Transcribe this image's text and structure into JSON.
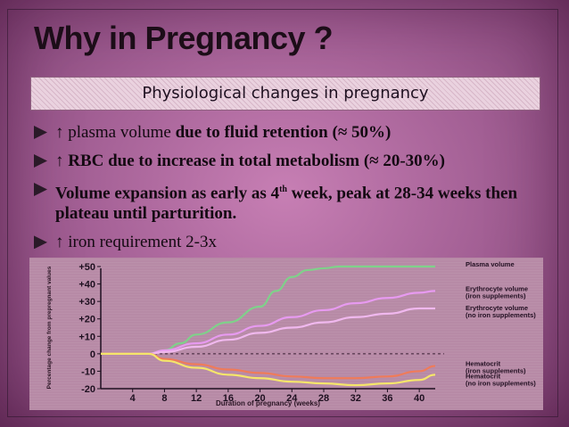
{
  "slide": {
    "title": "Why in Pregnancy ?",
    "subtitle": "Physiological changes in pregnancy",
    "bullets": [
      {
        "text_normal": "↑ plasma volume ",
        "text_bold": "due to fluid retention (≈ 50%)"
      },
      {
        "text_bold": "↑ RBC due to increase in total metabolism (≈ 20-30%)"
      },
      {
        "text_bold_a": "Volume expansion as early as 4",
        "sup": "th",
        "text_bold_b": " week, peak at 28-34 weeks then plateau until parturition."
      },
      {
        "text_normal": "↑ iron requirement 2-3x"
      }
    ]
  },
  "colors": {
    "background": "#a05d92",
    "chart_bg": "#b78aa6",
    "plasma": "#7fd18a",
    "ery_iron": "#e79af0",
    "ery_noiron": "#f0b8ee",
    "hct_iron": "#ef7b5a",
    "hct_noiron": "#f5e66a"
  },
  "chart_data": {
    "type": "line",
    "xlabel": "Duration of pregnancy (weeks)",
    "ylabel": "Percentage change from prepregnant values",
    "x_ticks": [
      "4",
      "8",
      "12",
      "16",
      "20",
      "24",
      "28",
      "32",
      "36",
      "40"
    ],
    "y_ticks": [
      "+50",
      "+40",
      "+30",
      "+20",
      "+10",
      "0",
      "-10",
      "-20"
    ],
    "xlim": [
      0,
      42
    ],
    "ylim": [
      -20,
      50
    ],
    "series": [
      {
        "name": "Plasma volume",
        "x": [
          0,
          6,
          8,
          10,
          12,
          16,
          20,
          22,
          24,
          26,
          28,
          30,
          32,
          36,
          40,
          42
        ],
        "y": [
          0,
          0,
          2,
          6,
          11,
          18,
          27,
          36,
          44,
          48,
          49,
          50,
          50,
          50,
          50,
          50
        ]
      },
      {
        "name": "Erythrocyte volume (iron supplements)",
        "x": [
          0,
          6,
          8,
          12,
          16,
          20,
          24,
          28,
          32,
          36,
          40,
          42
        ],
        "y": [
          0,
          0,
          2,
          6,
          11,
          16,
          21,
          25,
          29,
          32,
          35,
          36
        ]
      },
      {
        "name": "Erythrocyte volume (no iron supplements)",
        "x": [
          0,
          6,
          8,
          12,
          16,
          20,
          24,
          28,
          32,
          36,
          40,
          42
        ],
        "y": [
          0,
          0,
          1,
          4,
          8,
          12,
          15,
          18,
          21,
          23,
          26,
          26
        ]
      },
      {
        "name": "Hematocrit (iron supplements)",
        "x": [
          0,
          6,
          8,
          12,
          16,
          20,
          24,
          28,
          32,
          36,
          40,
          42
        ],
        "y": [
          0,
          0,
          -3,
          -6,
          -9,
          -11,
          -13,
          -14,
          -14,
          -13,
          -10,
          -7
        ]
      },
      {
        "name": "Hematocrit (no iron supplements)",
        "x": [
          0,
          6,
          8,
          12,
          16,
          20,
          24,
          28,
          32,
          36,
          40,
          42
        ],
        "y": [
          0,
          0,
          -4,
          -8,
          -12,
          -14,
          -16,
          -17,
          -18,
          -17,
          -15,
          -12
        ]
      }
    ],
    "legend_labels": [
      {
        "line1": "Plasma volume",
        "line2": ""
      },
      {
        "line1": "Erythrocyte volume",
        "line2": "(iron supplements)"
      },
      {
        "line1": "Erythrocyte volume",
        "line2": "(no iron supplements)"
      },
      {
        "line1": "Hematocrit",
        "line2": "(iron supplements)"
      },
      {
        "line1": "Hematocrit",
        "line2": "(no iron supplements)"
      }
    ],
    "legend_anchor_y": [
      50,
      36,
      25,
      -7,
      -12
    ],
    "baseline": 0,
    "legend_placement": "right"
  }
}
